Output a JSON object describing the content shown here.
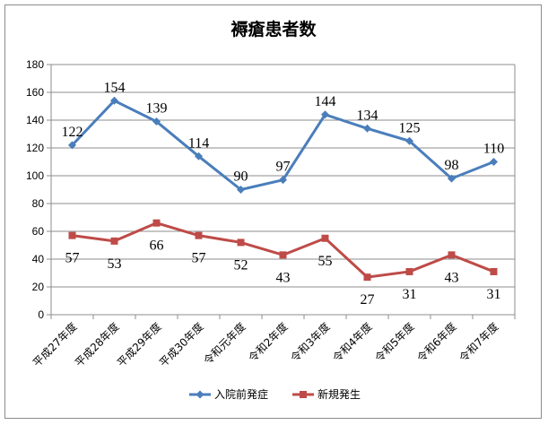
{
  "chart_data": {
    "type": "line",
    "title": "褥瘡患者数",
    "categories": [
      "平成27年度",
      "平成28年度",
      "平成29年度",
      "平成30年度",
      "令和元年度",
      "令和2年度",
      "令和3年度",
      "令和4年度",
      "令和5年度",
      "令和6年度",
      "令和7年度"
    ],
    "ylim": [
      0,
      180
    ],
    "yticks": [
      0,
      20,
      40,
      60,
      80,
      100,
      120,
      140,
      160,
      180
    ],
    "grid": true,
    "legend": "bottom",
    "series": [
      {
        "name": "入院前発症",
        "color": "#4a7ebb",
        "marker": "diamond",
        "values": [
          122,
          154,
          139,
          114,
          90,
          97,
          144,
          134,
          125,
          98,
          110
        ]
      },
      {
        "name": "新規発生",
        "color": "#be4b48",
        "marker": "square",
        "values": [
          57,
          53,
          66,
          57,
          52,
          43,
          55,
          27,
          31,
          43,
          31
        ]
      }
    ]
  }
}
